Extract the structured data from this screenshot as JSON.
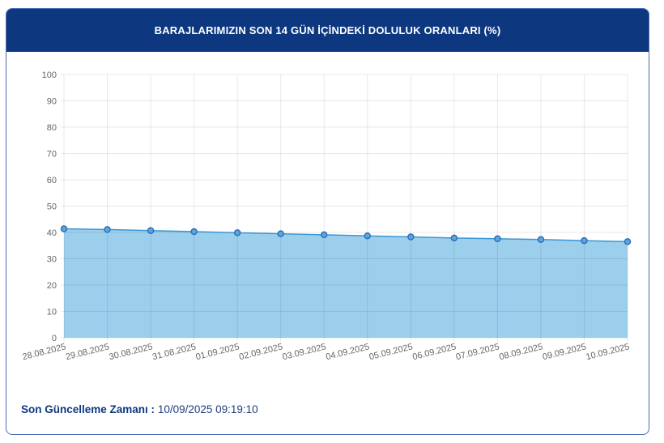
{
  "header": {
    "title": "BARAJLARIMIZIN SON 14 GÜN İÇİNDEKİ DOLULUK ORANLARI (%)"
  },
  "footer": {
    "label": "Son Güncelleme Zamanı :",
    "value": "10/09/2025 09:19:10"
  },
  "colors": {
    "header": "#0d3880",
    "fill": "#9bcfec",
    "line": "#3a97d6",
    "point": "#2f6fb8"
  },
  "chart_data": {
    "type": "area",
    "title": "BARAJLARIMIZIN SON 14 GÜN İÇİNDEKİ DOLULUK ORANLARI (%)",
    "categories": [
      "28.08.2025",
      "29.08.2025",
      "30.08.2025",
      "31.08.2025",
      "01.09.2025",
      "02.09.2025",
      "03.09.2025",
      "04.09.2025",
      "05.09.2025",
      "06.09.2025",
      "07.09.2025",
      "08.09.2025",
      "09.09.2025",
      "10.09.2025"
    ],
    "values": [
      41.4,
      41.1,
      40.7,
      40.3,
      39.9,
      39.5,
      39.1,
      38.7,
      38.3,
      37.9,
      37.6,
      37.3,
      36.9,
      36.5
    ],
    "ylim": [
      0,
      100
    ],
    "yticks": [
      0,
      10,
      20,
      30,
      40,
      50,
      60,
      70,
      80,
      90,
      100
    ],
    "grid": true,
    "xlabel": "",
    "ylabel": ""
  }
}
